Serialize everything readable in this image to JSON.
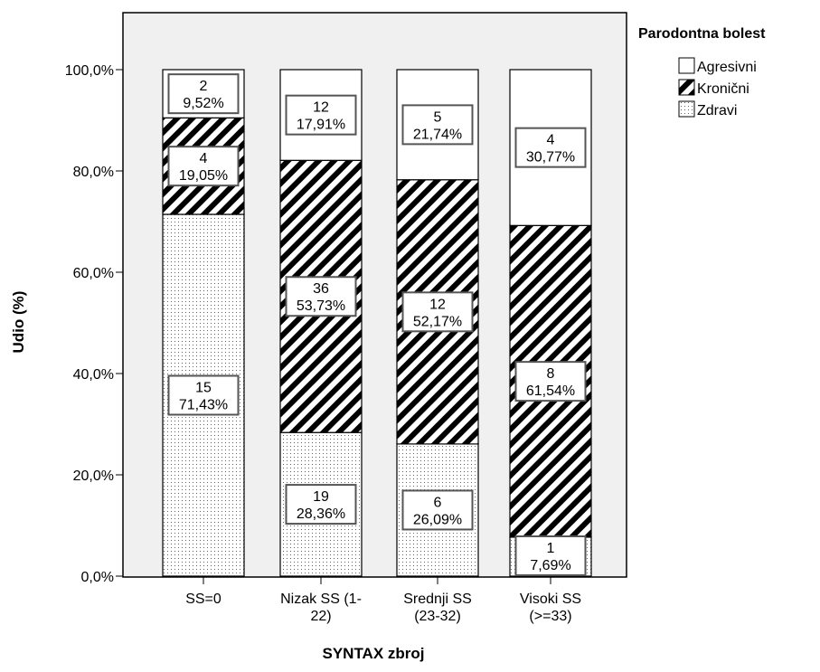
{
  "chart_data": {
    "type": "bar",
    "stacked": true,
    "percent": true,
    "xlabel": "SYNTAX zbroj",
    "ylabel": "Udio (%)",
    "ylim": [
      0,
      100
    ],
    "yticks": [
      "0,0%",
      "20,0%",
      "40,0%",
      "60,0%",
      "80,0%",
      "100,0%"
    ],
    "categories": [
      [
        "SS=0"
      ],
      [
        "Nizak SS (1-",
        "22)"
      ],
      [
        "Srednji SS",
        "(23-32)"
      ],
      [
        "Visoki SS",
        "(>=33)"
      ]
    ],
    "legend_title": "Parodontna bolest",
    "legend_position": "top-right",
    "series": [
      {
        "name": "Zdravi",
        "pattern": "dots",
        "counts": [
          15,
          19,
          6,
          1
        ],
        "values": [
          71.43,
          28.36,
          26.09,
          7.69
        ],
        "labels": [
          "71,43%",
          "28,36%",
          "26,09%",
          "7,69%"
        ]
      },
      {
        "name": "Kronični",
        "pattern": "diagonal",
        "counts": [
          4,
          36,
          12,
          8
        ],
        "values": [
          19.05,
          53.73,
          52.17,
          61.54
        ],
        "labels": [
          "19,05%",
          "53,73%",
          "52,17%",
          "61,54%"
        ]
      },
      {
        "name": "Agresivni",
        "pattern": "none",
        "counts": [
          2,
          12,
          5,
          4
        ],
        "values": [
          9.52,
          17.91,
          21.74,
          30.77
        ],
        "labels": [
          "9,52%",
          "17,91%",
          "21,74%",
          "30,77%"
        ]
      }
    ],
    "legend_order": [
      "Agresivni",
      "Kronični",
      "Zdravi"
    ],
    "colors": {
      "plot_background": "#f0f0f0",
      "bar_fill": "#ffffff",
      "stroke": "#000000",
      "label_border": "#555555"
    }
  }
}
